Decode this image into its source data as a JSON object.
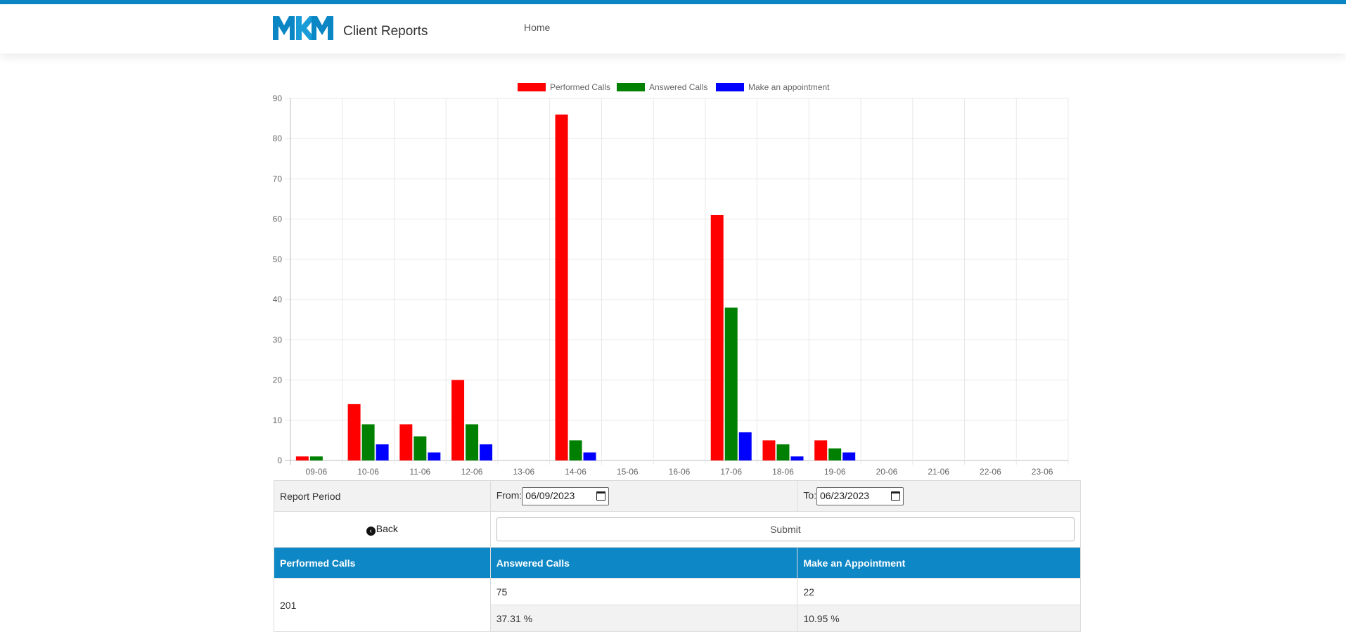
{
  "header": {
    "logo_text": "MKM",
    "title": "Client Reports",
    "nav_home": "Home"
  },
  "colors": {
    "accent": "#0b86c4",
    "performed": "#ff0000",
    "answered": "#008000",
    "appointment": "#0000ff"
  },
  "chart_data": {
    "type": "bar",
    "categories": [
      "09-06",
      "10-06",
      "11-06",
      "12-06",
      "13-06",
      "14-06",
      "15-06",
      "16-06",
      "17-06",
      "18-06",
      "19-06",
      "20-06",
      "21-06",
      "22-06",
      "23-06"
    ],
    "series": [
      {
        "name": "Performed Calls",
        "color": "#ff0000",
        "values": [
          1,
          14,
          9,
          20,
          0,
          86,
          0,
          0,
          61,
          5,
          5,
          0,
          0,
          0,
          0
        ]
      },
      {
        "name": "Answered Calls",
        "color": "#008000",
        "values": [
          1,
          9,
          6,
          9,
          0,
          5,
          0,
          0,
          38,
          4,
          3,
          0,
          0,
          0,
          0
        ]
      },
      {
        "name": "Make an appointment",
        "color": "#0000ff",
        "values": [
          0,
          4,
          2,
          4,
          0,
          2,
          0,
          0,
          7,
          1,
          2,
          0,
          0,
          0,
          0
        ]
      }
    ],
    "yticks": [
      0,
      10,
      20,
      30,
      40,
      50,
      60,
      70,
      80,
      90
    ],
    "ylim": [
      0,
      90
    ],
    "grid": true,
    "legend": "top-center"
  },
  "form": {
    "period_label": "Report Period",
    "from_label": "From:",
    "from_value": "06/09/2023",
    "to_label": "To:",
    "to_value": "06/23/2023",
    "back_label": "Back",
    "submit_label": "Submit"
  },
  "summary": {
    "headers": [
      "Performed Calls",
      "Answered Calls",
      "Make an Appointment"
    ],
    "performed": "201",
    "answered": "75",
    "appointment": "22",
    "answered_pct": "37.31 %",
    "appointment_pct": "10.95 %"
  }
}
